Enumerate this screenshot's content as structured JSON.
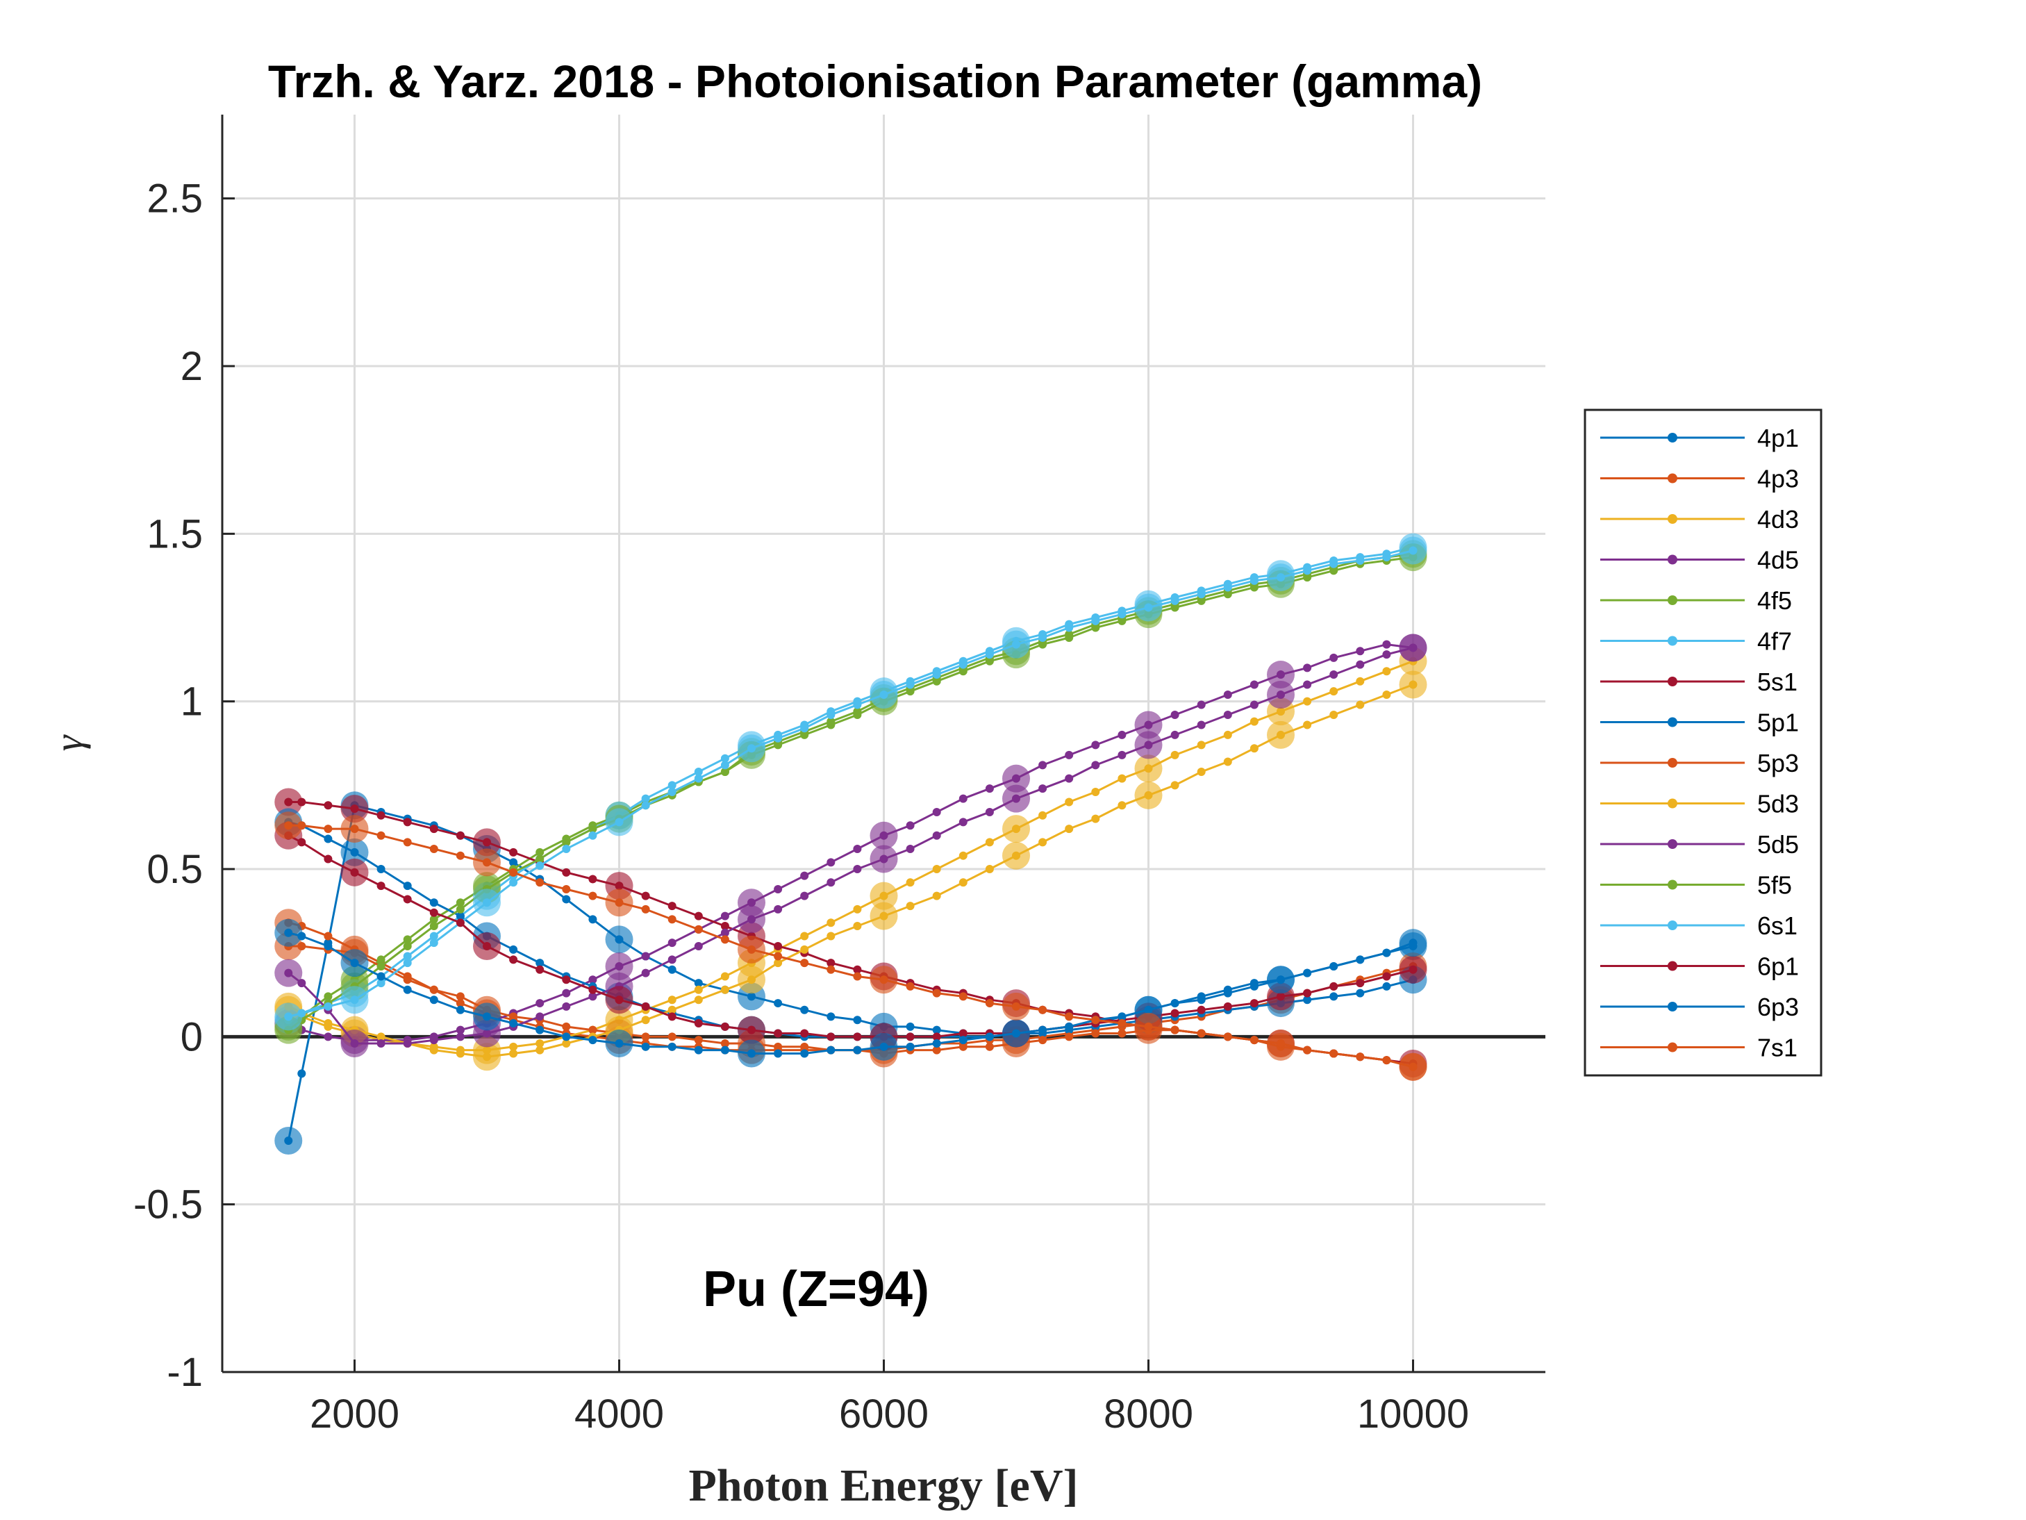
{
  "chart_data": {
    "type": "line",
    "title": "Trzh. & Yarz. 2018 - Photoionisation Parameter (gamma)",
    "xlabel": "Photon Energy [eV]",
    "ylabel": "γ",
    "annotation": "Pu (Z=94)",
    "xlim": [
      1000,
      11000
    ],
    "ylim": [
      -1,
      2.75
    ],
    "xticks": [
      2000,
      4000,
      6000,
      8000,
      10000
    ],
    "yticks": [
      -1,
      -0.5,
      0,
      0.5,
      1,
      1.5,
      2,
      2.5
    ],
    "xtick_labels": [
      "2000",
      "4000",
      "6000",
      "8000",
      "10000"
    ],
    "ytick_labels": [
      "-1",
      "-0.5",
      "0",
      "0.5",
      "1",
      "1.5",
      "2",
      "2.5"
    ],
    "grid": true,
    "zero_line": true,
    "legend_position": "right",
    "x": [
      1500,
      1600,
      1800,
      2000,
      2200,
      2400,
      2600,
      2800,
      3000,
      3200,
      3400,
      3600,
      3800,
      4000,
      4200,
      4400,
      4600,
      4800,
      5000,
      5200,
      5400,
      5600,
      5800,
      6000,
      6200,
      6400,
      6600,
      6800,
      7000,
      7200,
      7400,
      7600,
      7800,
      8000,
      8200,
      8400,
      8600,
      8800,
      9000,
      9200,
      9400,
      9600,
      9800,
      10000
    ],
    "marker_x": [
      1500,
      2000,
      3000,
      4000,
      5000,
      6000,
      7000,
      8000,
      9000,
      10000
    ],
    "series": [
      {
        "name": "4p1",
        "color": "#0072BD",
        "values": [
          -0.31,
          -0.11,
          0.28,
          0.69,
          0.67,
          0.65,
          0.63,
          0.6,
          0.56,
          0.52,
          0.47,
          0.41,
          0.35,
          0.29,
          0.24,
          0.2,
          0.16,
          0.14,
          0.12,
          0.1,
          0.08,
          0.06,
          0.05,
          0.03,
          0.03,
          0.02,
          0.01,
          0.01,
          0.01,
          0.02,
          0.03,
          0.04,
          0.06,
          0.08,
          0.1,
          0.12,
          0.14,
          0.16,
          0.17,
          0.19,
          0.21,
          0.23,
          0.25,
          0.27
        ]
      },
      {
        "name": "4p3",
        "color": "#D95319",
        "values": [
          0.34,
          0.33,
          0.3,
          0.26,
          0.22,
          0.18,
          0.14,
          0.1,
          0.07,
          0.05,
          0.03,
          0.01,
          0.0,
          -0.01,
          -0.02,
          -0.03,
          -0.03,
          -0.04,
          -0.04,
          -0.04,
          -0.04,
          -0.04,
          -0.04,
          -0.04,
          -0.03,
          -0.02,
          -0.02,
          -0.01,
          -0.01,
          0.0,
          0.01,
          0.02,
          0.03,
          0.04,
          0.05,
          0.06,
          0.08,
          0.09,
          0.11,
          0.13,
          0.15,
          0.17,
          0.19,
          0.21
        ]
      },
      {
        "name": "4d3",
        "color": "#EDB120",
        "values": [
          0.08,
          0.06,
          0.03,
          0.01,
          -0.01,
          -0.02,
          -0.03,
          -0.04,
          -0.04,
          -0.03,
          -0.02,
          0.0,
          0.02,
          0.05,
          0.08,
          0.11,
          0.14,
          0.18,
          0.22,
          0.26,
          0.3,
          0.34,
          0.38,
          0.42,
          0.46,
          0.5,
          0.54,
          0.58,
          0.62,
          0.66,
          0.7,
          0.73,
          0.77,
          0.8,
          0.84,
          0.87,
          0.9,
          0.94,
          0.97,
          1.0,
          1.03,
          1.06,
          1.09,
          1.12
        ]
      },
      {
        "name": "4d5",
        "color": "#7E2F8E",
        "values": [
          0.04,
          0.02,
          0.0,
          -0.01,
          -0.01,
          -0.01,
          0.0,
          0.02,
          0.04,
          0.07,
          0.1,
          0.13,
          0.17,
          0.21,
          0.24,
          0.28,
          0.32,
          0.36,
          0.4,
          0.44,
          0.48,
          0.52,
          0.56,
          0.6,
          0.63,
          0.67,
          0.71,
          0.74,
          0.77,
          0.81,
          0.84,
          0.87,
          0.9,
          0.93,
          0.96,
          0.99,
          1.02,
          1.05,
          1.08,
          1.1,
          1.13,
          1.15,
          1.17,
          1.16
        ]
      },
      {
        "name": "4f5",
        "color": "#77AC30",
        "values": [
          0.03,
          0.06,
          0.12,
          0.17,
          0.23,
          0.29,
          0.35,
          0.4,
          0.45,
          0.5,
          0.55,
          0.59,
          0.63,
          0.66,
          0.7,
          0.73,
          0.76,
          0.79,
          0.85,
          0.88,
          0.91,
          0.94,
          0.97,
          1.01,
          1.04,
          1.07,
          1.1,
          1.13,
          1.15,
          1.18,
          1.2,
          1.23,
          1.25,
          1.27,
          1.29,
          1.31,
          1.33,
          1.35,
          1.36,
          1.38,
          1.4,
          1.42,
          1.43,
          1.44
        ]
      },
      {
        "name": "4f7",
        "color": "#4DBEEE",
        "values": [
          0.05,
          0.07,
          0.1,
          0.13,
          0.18,
          0.24,
          0.3,
          0.36,
          0.42,
          0.48,
          0.53,
          0.58,
          0.62,
          0.66,
          0.71,
          0.75,
          0.79,
          0.83,
          0.87,
          0.9,
          0.93,
          0.97,
          1.0,
          1.03,
          1.06,
          1.09,
          1.12,
          1.15,
          1.18,
          1.2,
          1.23,
          1.25,
          1.27,
          1.29,
          1.31,
          1.33,
          1.35,
          1.37,
          1.38,
          1.4,
          1.42,
          1.43,
          1.44,
          1.46
        ]
      },
      {
        "name": "5s1",
        "color": "#A2142F",
        "values": [
          0.7,
          0.7,
          0.69,
          0.68,
          0.66,
          0.64,
          0.62,
          0.6,
          0.58,
          0.55,
          0.52,
          0.49,
          0.47,
          0.45,
          0.42,
          0.39,
          0.36,
          0.33,
          0.3,
          0.27,
          0.25,
          0.22,
          0.2,
          0.18,
          0.16,
          0.14,
          0.13,
          0.11,
          0.1,
          0.08,
          0.07,
          0.06,
          0.04,
          0.03,
          0.02,
          0.01,
          0.0,
          -0.01,
          -0.02,
          -0.04,
          -0.05,
          -0.06,
          -0.07,
          -0.08
        ]
      },
      {
        "name": "5p1",
        "color": "#0072BD",
        "values": [
          0.64,
          0.63,
          0.59,
          0.55,
          0.5,
          0.45,
          0.4,
          0.36,
          0.3,
          0.26,
          0.22,
          0.18,
          0.15,
          0.12,
          0.09,
          0.07,
          0.05,
          0.03,
          0.02,
          0.01,
          0.0,
          0.0,
          0.0,
          0.0,
          0.0,
          0.0,
          0.0,
          0.0,
          0.01,
          0.01,
          0.02,
          0.03,
          0.04,
          0.05,
          0.06,
          0.07,
          0.08,
          0.09,
          0.1,
          0.11,
          0.12,
          0.13,
          0.15,
          0.17
        ]
      },
      {
        "name": "5p3",
        "color": "#D95319",
        "values": [
          0.27,
          0.27,
          0.26,
          0.25,
          0.21,
          0.17,
          0.14,
          0.12,
          0.08,
          0.06,
          0.05,
          0.03,
          0.02,
          0.01,
          0.0,
          0.0,
          -0.01,
          -0.02,
          -0.02,
          -0.03,
          -0.03,
          -0.04,
          -0.04,
          -0.05,
          -0.04,
          -0.04,
          -0.03,
          -0.03,
          -0.02,
          -0.01,
          0.0,
          0.01,
          0.01,
          0.02,
          0.02,
          0.01,
          0.0,
          -0.01,
          -0.03,
          -0.04,
          -0.05,
          -0.06,
          -0.07,
          -0.09
        ]
      },
      {
        "name": "5d3",
        "color": "#EDB120",
        "values": [
          0.09,
          0.07,
          0.04,
          0.02,
          0.0,
          -0.02,
          -0.04,
          -0.05,
          -0.06,
          -0.05,
          -0.04,
          -0.02,
          0.0,
          0.02,
          0.05,
          0.08,
          0.11,
          0.14,
          0.17,
          0.22,
          0.26,
          0.3,
          0.33,
          0.36,
          0.39,
          0.42,
          0.46,
          0.5,
          0.54,
          0.58,
          0.62,
          0.65,
          0.69,
          0.72,
          0.75,
          0.79,
          0.82,
          0.86,
          0.9,
          0.93,
          0.96,
          0.99,
          1.02,
          1.05
        ]
      },
      {
        "name": "5d5",
        "color": "#7E2F8E",
        "values": [
          0.19,
          0.16,
          0.08,
          -0.02,
          -0.02,
          -0.02,
          -0.01,
          0.0,
          0.01,
          0.03,
          0.06,
          0.09,
          0.12,
          0.15,
          0.19,
          0.23,
          0.27,
          0.31,
          0.35,
          0.38,
          0.42,
          0.46,
          0.5,
          0.53,
          0.56,
          0.6,
          0.64,
          0.67,
          0.71,
          0.74,
          0.77,
          0.81,
          0.84,
          0.87,
          0.9,
          0.93,
          0.96,
          0.99,
          1.02,
          1.05,
          1.08,
          1.11,
          1.14,
          1.16
        ]
      },
      {
        "name": "5f5",
        "color": "#77AC30",
        "values": [
          0.02,
          0.05,
          0.1,
          0.15,
          0.21,
          0.27,
          0.33,
          0.38,
          0.44,
          0.49,
          0.53,
          0.58,
          0.62,
          0.65,
          0.69,
          0.72,
          0.76,
          0.79,
          0.84,
          0.87,
          0.9,
          0.93,
          0.96,
          1.0,
          1.03,
          1.06,
          1.09,
          1.12,
          1.14,
          1.17,
          1.19,
          1.22,
          1.24,
          1.26,
          1.28,
          1.3,
          1.32,
          1.34,
          1.35,
          1.37,
          1.39,
          1.41,
          1.42,
          1.43
        ]
      },
      {
        "name": "6s1",
        "color": "#4DBEEE",
        "values": [
          0.06,
          0.07,
          0.09,
          0.11,
          0.16,
          0.22,
          0.28,
          0.34,
          0.4,
          0.46,
          0.51,
          0.56,
          0.6,
          0.64,
          0.69,
          0.73,
          0.77,
          0.81,
          0.86,
          0.89,
          0.92,
          0.96,
          0.99,
          1.02,
          1.05,
          1.08,
          1.11,
          1.14,
          1.17,
          1.19,
          1.22,
          1.24,
          1.26,
          1.28,
          1.3,
          1.32,
          1.34,
          1.36,
          1.37,
          1.39,
          1.41,
          1.42,
          1.43,
          1.45
        ]
      },
      {
        "name": "6p1",
        "color": "#A2142F",
        "values": [
          0.6,
          0.58,
          0.53,
          0.49,
          0.45,
          0.41,
          0.37,
          0.34,
          0.27,
          0.23,
          0.2,
          0.17,
          0.14,
          0.11,
          0.09,
          0.06,
          0.04,
          0.03,
          0.02,
          0.01,
          0.01,
          0.0,
          0.0,
          0.0,
          0.0,
          0.0,
          0.01,
          0.01,
          0.01,
          0.02,
          0.03,
          0.04,
          0.05,
          0.06,
          0.07,
          0.08,
          0.09,
          0.1,
          0.12,
          0.13,
          0.15,
          0.16,
          0.18,
          0.2
        ]
      },
      {
        "name": "6p3",
        "color": "#0072BD",
        "values": [
          0.31,
          0.3,
          0.27,
          0.22,
          0.18,
          0.14,
          0.11,
          0.08,
          0.06,
          0.04,
          0.02,
          0.0,
          -0.01,
          -0.02,
          -0.03,
          -0.03,
          -0.04,
          -0.04,
          -0.05,
          -0.05,
          -0.05,
          -0.04,
          -0.04,
          -0.03,
          -0.03,
          -0.02,
          -0.01,
          0.0,
          0.01,
          0.02,
          0.03,
          0.05,
          0.06,
          0.08,
          0.1,
          0.11,
          0.13,
          0.15,
          0.17,
          0.19,
          0.21,
          0.23,
          0.25,
          0.28
        ]
      },
      {
        "name": "7s1",
        "color": "#D95319",
        "values": [
          0.63,
          0.63,
          0.62,
          0.62,
          0.6,
          0.58,
          0.56,
          0.54,
          0.52,
          0.49,
          0.46,
          0.44,
          0.42,
          0.4,
          0.38,
          0.35,
          0.32,
          0.29,
          0.26,
          0.24,
          0.22,
          0.2,
          0.18,
          0.17,
          0.15,
          0.13,
          0.12,
          0.1,
          0.09,
          0.08,
          0.06,
          0.05,
          0.04,
          0.03,
          0.02,
          0.01,
          0.0,
          -0.01,
          -0.02,
          -0.04,
          -0.05,
          -0.06,
          -0.07,
          -0.09
        ]
      }
    ]
  }
}
